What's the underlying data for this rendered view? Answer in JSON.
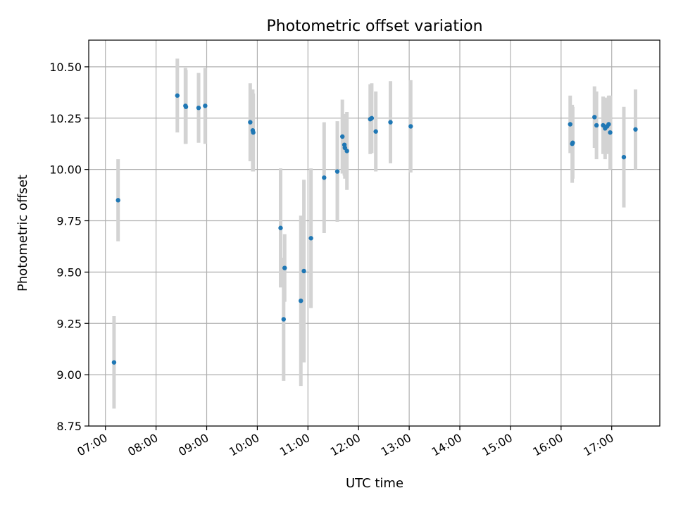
{
  "chart_data": {
    "type": "scatter",
    "title": "Photometric offset variation",
    "xlabel": "UTC time",
    "ylabel": "Photometric offset",
    "x_unit": "hours (UTC, decimal)",
    "xlim": [
      6.67,
      17.95
    ],
    "ylim": [
      8.75,
      10.63
    ],
    "x_ticks": [
      7,
      8,
      9,
      10,
      11,
      12,
      13,
      14,
      15,
      16,
      17
    ],
    "x_tick_labels": [
      "07:00",
      "08:00",
      "09:00",
      "10:00",
      "11:00",
      "12:00",
      "13:00",
      "14:00",
      "15:00",
      "16:00",
      "17:00"
    ],
    "y_ticks": [
      8.75,
      9.0,
      9.25,
      9.5,
      9.75,
      10.0,
      10.25,
      10.5
    ],
    "y_tick_labels": [
      "8.75",
      "9.00",
      "9.25",
      "9.50",
      "9.75",
      "10.00",
      "10.25",
      "10.50"
    ],
    "grid": true,
    "colors": {
      "point": "#1f77b4",
      "error_bar": "#d3d3d3",
      "grid": "#b0b0b0"
    },
    "points": [
      {
        "x": 7.17,
        "y": 9.06,
        "yerr": 0.225
      },
      {
        "x": 7.25,
        "y": 9.85,
        "yerr": 0.2
      },
      {
        "x": 8.42,
        "y": 10.36,
        "yerr": 0.18
      },
      {
        "x": 8.58,
        "y": 10.31,
        "yerr": 0.185
      },
      {
        "x": 8.59,
        "y": 10.305,
        "yerr": 0.18
      },
      {
        "x": 8.84,
        "y": 10.3,
        "yerr": 0.17
      },
      {
        "x": 8.97,
        "y": 10.31,
        "yerr": 0.185
      },
      {
        "x": 9.86,
        "y": 10.23,
        "yerr": 0.19
      },
      {
        "x": 9.91,
        "y": 10.19,
        "yerr": 0.2
      },
      {
        "x": 9.92,
        "y": 10.18,
        "yerr": 0.19
      },
      {
        "x": 10.46,
        "y": 9.715,
        "yerr": 0.29
      },
      {
        "x": 10.52,
        "y": 9.27,
        "yerr": 0.3
      },
      {
        "x": 10.54,
        "y": 9.52,
        "yerr": 0.165
      },
      {
        "x": 10.86,
        "y": 9.36,
        "yerr": 0.415
      },
      {
        "x": 10.92,
        "y": 9.505,
        "yerr": 0.445
      },
      {
        "x": 11.06,
        "y": 9.665,
        "yerr": 0.34
      },
      {
        "x": 11.32,
        "y": 9.96,
        "yerr": 0.27
      },
      {
        "x": 11.58,
        "y": 9.99,
        "yerr": 0.245
      },
      {
        "x": 11.68,
        "y": 10.16,
        "yerr": 0.18
      },
      {
        "x": 11.72,
        "y": 10.12,
        "yerr": 0.15
      },
      {
        "x": 11.73,
        "y": 10.105,
        "yerr": 0.15
      },
      {
        "x": 11.77,
        "y": 10.09,
        "yerr": 0.19
      },
      {
        "x": 12.23,
        "y": 10.245,
        "yerr": 0.17
      },
      {
        "x": 12.26,
        "y": 10.25,
        "yerr": 0.17
      },
      {
        "x": 12.34,
        "y": 10.185,
        "yerr": 0.195
      },
      {
        "x": 12.63,
        "y": 10.23,
        "yerr": 0.2
      },
      {
        "x": 13.03,
        "y": 10.21,
        "yerr": 0.225
      },
      {
        "x": 16.18,
        "y": 10.22,
        "yerr": 0.14
      },
      {
        "x": 16.22,
        "y": 10.125,
        "yerr": 0.19
      },
      {
        "x": 16.23,
        "y": 10.13,
        "yerr": 0.175
      },
      {
        "x": 16.66,
        "y": 10.255,
        "yerr": 0.15
      },
      {
        "x": 16.7,
        "y": 10.215,
        "yerr": 0.165
      },
      {
        "x": 16.83,
        "y": 10.215,
        "yerr": 0.14
      },
      {
        "x": 16.87,
        "y": 10.2,
        "yerr": 0.15
      },
      {
        "x": 16.91,
        "y": 10.21,
        "yerr": 0.135
      },
      {
        "x": 16.94,
        "y": 10.22,
        "yerr": 0.14
      },
      {
        "x": 16.97,
        "y": 10.18,
        "yerr": 0.18
      },
      {
        "x": 17.24,
        "y": 10.06,
        "yerr": 0.245
      },
      {
        "x": 17.47,
        "y": 10.195,
        "yerr": 0.195
      }
    ]
  }
}
